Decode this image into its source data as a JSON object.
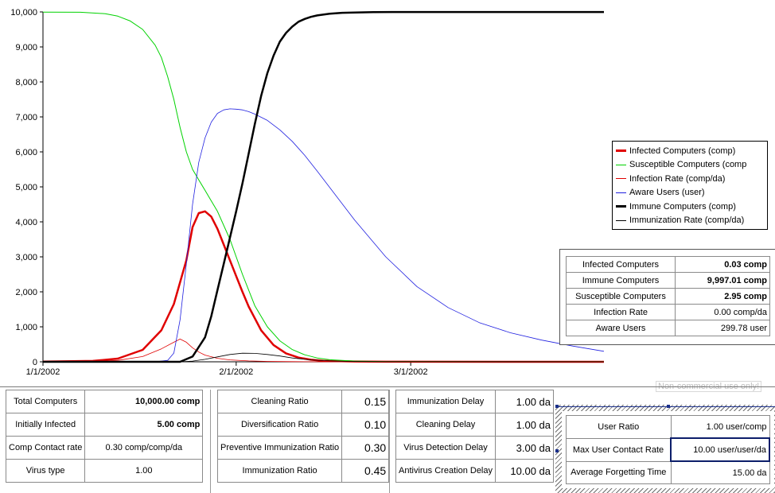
{
  "chart_data": {
    "type": "line",
    "x_tick_labels": [
      "1/1/2002",
      "2/1/2002",
      "3/1/2002"
    ],
    "x_ticks_day": [
      0,
      31,
      59
    ],
    "xlim": [
      0,
      90
    ],
    "ylim": [
      0,
      10000
    ],
    "y_tick_labels": [
      "0",
      "1,000",
      "2,000",
      "3,000",
      "4,000",
      "5,000",
      "6,000",
      "7,000",
      "8,000",
      "9,000",
      "10,000"
    ],
    "y_ticks": [
      0,
      1000,
      2000,
      3000,
      4000,
      5000,
      6000,
      7000,
      8000,
      9000,
      10000
    ],
    "series": [
      {
        "name": "Infected Computers (comp)",
        "color": "#e00000",
        "width": 2.5,
        "x": [
          0,
          8,
          12,
          16,
          19,
          21,
          23,
          24,
          25,
          26,
          27,
          28,
          29,
          30,
          31,
          32,
          33,
          35,
          37,
          39,
          41,
          43,
          45,
          50,
          55,
          90
        ],
        "y": [
          5,
          25,
          90,
          340,
          900,
          1650,
          2900,
          3850,
          4250,
          4300,
          4150,
          3800,
          3350,
          2900,
          2450,
          2000,
          1580,
          900,
          480,
          240,
          120,
          60,
          30,
          8,
          2,
          0
        ]
      },
      {
        "name": "Susceptible Computers (comp",
        "color": "#00d200",
        "width": 1,
        "x": [
          0,
          6,
          10,
          12,
          14,
          16,
          18,
          19,
          20,
          21,
          22,
          23,
          24,
          25,
          26,
          27,
          28,
          30,
          32,
          34,
          36,
          38,
          40,
          42,
          44,
          46,
          50,
          55,
          90
        ],
        "y": [
          9995,
          9990,
          9950,
          9880,
          9740,
          9500,
          9050,
          8700,
          8150,
          7500,
          6700,
          6000,
          5500,
          5200,
          4900,
          4600,
          4300,
          3500,
          2500,
          1600,
          1000,
          600,
          350,
          200,
          110,
          60,
          20,
          5,
          3
        ]
      },
      {
        "name": "Infection Rate (comp/da)",
        "color": "#e00000",
        "width": 0.8,
        "x": [
          0,
          8,
          12,
          16,
          19,
          21,
          22,
          23,
          24,
          25,
          26,
          28,
          30,
          33,
          36,
          40,
          45,
          90
        ],
        "y": [
          0,
          10,
          40,
          150,
          370,
          560,
          650,
          560,
          400,
          280,
          190,
          100,
          55,
          25,
          12,
          4,
          1,
          0
        ]
      },
      {
        "name": "Aware Users (user)",
        "color": "#2020e0",
        "width": 0.8,
        "x": [
          0,
          18,
          20,
          21,
          22,
          23,
          24,
          25,
          26,
          27,
          28,
          29,
          30,
          31,
          32,
          33,
          34,
          36,
          38,
          40,
          42,
          44,
          47,
          50,
          55,
          60,
          65,
          70,
          75,
          80,
          85,
          90
        ],
        "y": [
          0,
          0,
          40,
          250,
          1200,
          2800,
          4500,
          5700,
          6400,
          6850,
          7100,
          7200,
          7230,
          7220,
          7200,
          7150,
          7080,
          6900,
          6630,
          6300,
          5900,
          5450,
          4750,
          4050,
          3000,
          2150,
          1550,
          1120,
          830,
          620,
          450,
          300
        ]
      },
      {
        "name": "Immune Computers (comp)",
        "color": "#000000",
        "width": 2.5,
        "x": [
          0,
          22,
          24,
          26,
          27,
          28,
          29,
          30,
          31,
          32,
          33,
          34,
          35,
          36,
          37,
          38,
          39,
          40,
          41,
          42,
          43,
          44,
          46,
          48,
          50,
          53,
          56,
          90
        ],
        "y": [
          0,
          0,
          150,
          700,
          1300,
          2050,
          2800,
          3550,
          4300,
          5100,
          5950,
          6800,
          7600,
          8250,
          8750,
          9150,
          9400,
          9580,
          9720,
          9800,
          9860,
          9900,
          9950,
          9975,
          9985,
          9993,
          9997,
          9997
        ]
      },
      {
        "name": "Immunization Rate (comp/da)",
        "color": "#000000",
        "width": 0.8,
        "x": [
          0,
          22,
          24,
          26,
          28,
          30,
          32,
          34,
          36,
          38,
          40,
          43,
          46,
          50,
          55,
          90
        ],
        "y": [
          0,
          0,
          20,
          70,
          140,
          210,
          245,
          240,
          210,
          165,
          110,
          55,
          25,
          8,
          2,
          0
        ]
      }
    ]
  },
  "legend": [
    {
      "label": "Infected Computers (comp)",
      "color": "#e00000",
      "thick": true
    },
    {
      "label": "Susceptible Computers (comp",
      "color": "#00d200",
      "thick": false
    },
    {
      "label": "Infection Rate (comp/da)",
      "color": "#e00000",
      "thick": false
    },
    {
      "label": "Aware Users (user)",
      "color": "#2020e0",
      "thick": false
    },
    {
      "label": "Immune Computers (comp)",
      "color": "#000000",
      "thick": true
    },
    {
      "label": "Immunization Rate (comp/da)",
      "color": "#000000",
      "thick": false
    }
  ],
  "results": [
    {
      "label": "Infected Computers",
      "value": "0.03 comp",
      "bold": true
    },
    {
      "label": "Immune Computers",
      "value": "9,997.01 comp",
      "bold": true
    },
    {
      "label": "Susceptible Computers",
      "value": "2.95 comp",
      "bold": true
    },
    {
      "label": "Infection Rate",
      "value": "0.00 comp/da",
      "bold": false
    },
    {
      "label": "Aware Users",
      "value": "299.78 user",
      "bold": false
    }
  ],
  "panel1": [
    {
      "label": "Total Computers",
      "value": "10,000.00 comp",
      "bold": true
    },
    {
      "label": "Initially Infected",
      "value": "5.00 comp",
      "bold": true
    },
    {
      "label": "Comp Contact rate",
      "value": "0.30 comp/comp/da",
      "bold": false
    },
    {
      "label": "Virus type",
      "value": "1.00",
      "bold": false
    }
  ],
  "panel2": [
    {
      "label": "Cleaning Ratio",
      "value": "0.15"
    },
    {
      "label": "Diversification Ratio",
      "value": "0.10"
    },
    {
      "label": "Preventive Immunization Ratio",
      "value": "0.30"
    },
    {
      "label": "Immunization Ratio",
      "value": "0.45"
    }
  ],
  "panel3": [
    {
      "label": "Immunization Delay",
      "value": "1.00 da"
    },
    {
      "label": "Cleaning Delay",
      "value": "1.00 da"
    },
    {
      "label": "Virus Detection Delay",
      "value": "3.00 da"
    },
    {
      "label": "Antivirus Creation Delay",
      "value": "10.00 da"
    }
  ],
  "panel4": [
    {
      "label": "User Ratio",
      "value": "1.00 user/comp",
      "selected": false
    },
    {
      "label": "Max User Contact Rate",
      "value": "10.00 user/user/da",
      "selected": true
    },
    {
      "label": "Average Forgetting Time",
      "value": "15.00 da",
      "selected": false
    }
  ],
  "noncommercial_label": "Non-commercial use only!",
  "colors": {
    "dock_border": "#1a2f8a",
    "selected_border": "#0c1e6a"
  }
}
